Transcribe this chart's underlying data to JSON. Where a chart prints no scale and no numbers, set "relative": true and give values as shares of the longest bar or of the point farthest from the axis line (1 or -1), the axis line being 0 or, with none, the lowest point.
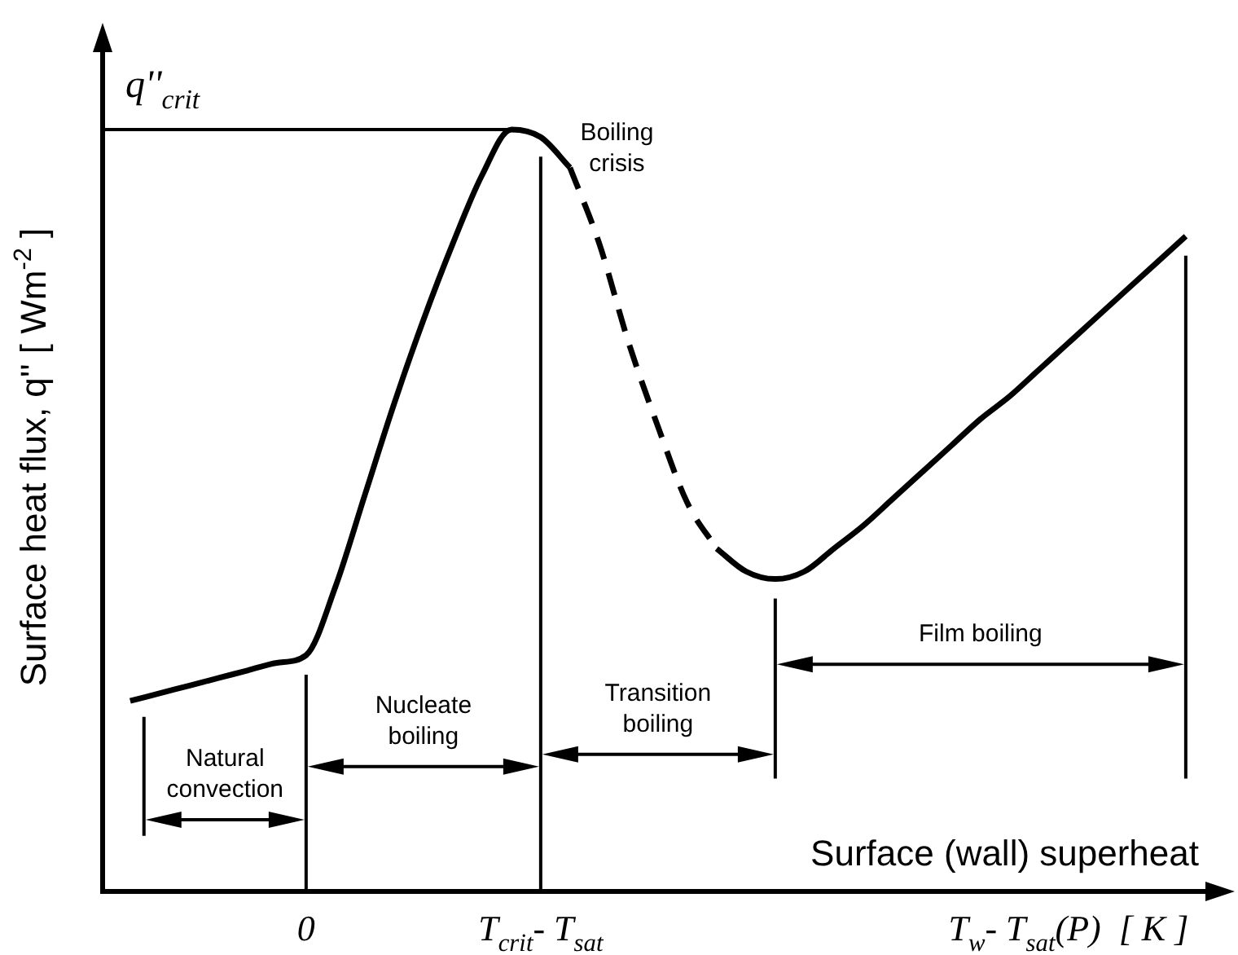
{
  "chart_data": {
    "type": "line",
    "relative": true,
    "xlabel": "Surface (wall) superheat",
    "ylabel": "Surface heat flux, q'' [ Wm$^{-2}$ ]",
    "categories": [
      null,
      null,
      null,
      null,
      null,
      null,
      "0",
      null,
      null,
      null,
      null,
      null,
      null,
      null,
      "T$_{crit}$- T$_{sat}$",
      null,
      null,
      null,
      null,
      null,
      null,
      null,
      null,
      null,
      null,
      null,
      null,
      null,
      null,
      null,
      null,
      null,
      "T$_{w}$- T$_{sat}$(P)  [ K ]",
      null,
      null,
      null,
      null
    ],
    "series": [
      {
        "color": "#000000",
        "line_style": "solid",
        "values": [
          0.25,
          0.26,
          0.27,
          0.28,
          0.29,
          0.3,
          0.31,
          0.4,
          0.52,
          0.64,
          0.75,
          0.85,
          0.94,
          1.0,
          0.99,
          0.95,
          null,
          null,
          null,
          null,
          null,
          null,
          null,
          null,
          null,
          null,
          null,
          null,
          null,
          null,
          null,
          null,
          null,
          null,
          null,
          null,
          null
        ]
      },
      {
        "color": "#000000",
        "line_style": "dashed",
        "values": [
          null,
          null,
          null,
          null,
          null,
          null,
          null,
          null,
          null,
          null,
          null,
          null,
          null,
          null,
          null,
          0.95,
          0.85,
          0.72,
          0.61,
          0.51,
          0.45,
          null,
          null,
          null,
          null,
          null,
          null,
          null,
          null,
          null,
          null,
          null,
          null,
          null,
          null,
          null,
          null
        ]
      },
      {
        "color": "#000000",
        "line_style": "solid",
        "values": [
          null,
          null,
          null,
          null,
          null,
          null,
          null,
          null,
          null,
          null,
          null,
          null,
          null,
          null,
          null,
          null,
          null,
          null,
          null,
          null,
          0.45,
          0.42,
          0.41,
          0.42,
          0.45,
          0.48,
          0.515,
          0.55,
          0.585,
          0.62,
          0.65,
          0.685,
          0.72,
          0.755,
          0.79,
          0.825,
          0.86
        ]
      }
    ],
    "ref_lines": [
      {
        "axis": "y",
        "value": 1.0,
        "label": "q''$_{crit}$"
      }
    ],
    "annotations": [
      "Natural convection",
      "Nucleate boiling",
      "Transition boiling",
      "Film boiling",
      "Boiling crisis"
    ]
  }
}
